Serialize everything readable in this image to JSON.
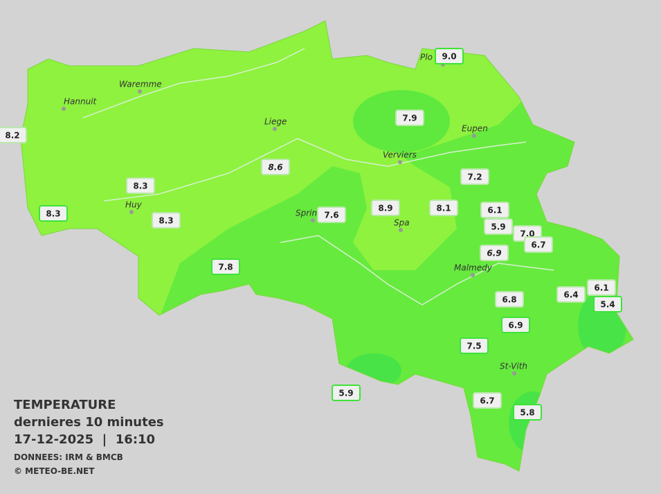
{
  "map": {
    "title": "TEMPERATURE",
    "subtitle": "dernieres 10 minutes",
    "datetime": "17-12-2025  |  16:10",
    "source": "DONNEES: IRM & BMCB",
    "copyright": "© METEO-BE.NET",
    "cities": [
      "Hannuit",
      "Waremme",
      "Liege",
      "Huy",
      "Verviers",
      "Eupen",
      "Sprin",
      "Spa",
      "Malmedy",
      "St-Vith",
      "Plo"
    ],
    "stations": [
      "8.2",
      "9.0",
      "7.9",
      "7.2",
      "8.6",
      "8.3",
      "8.3",
      "8.3",
      "7.6",
      "8.9",
      "8.1",
      "6.1",
      "5.9",
      "7.0",
      "6.7",
      "6.9",
      "7.8",
      "6.8",
      "6.4",
      "6.1",
      "5.4",
      "6.9",
      "7.5",
      "5.9",
      "6.7",
      "5.8"
    ]
  }
}
